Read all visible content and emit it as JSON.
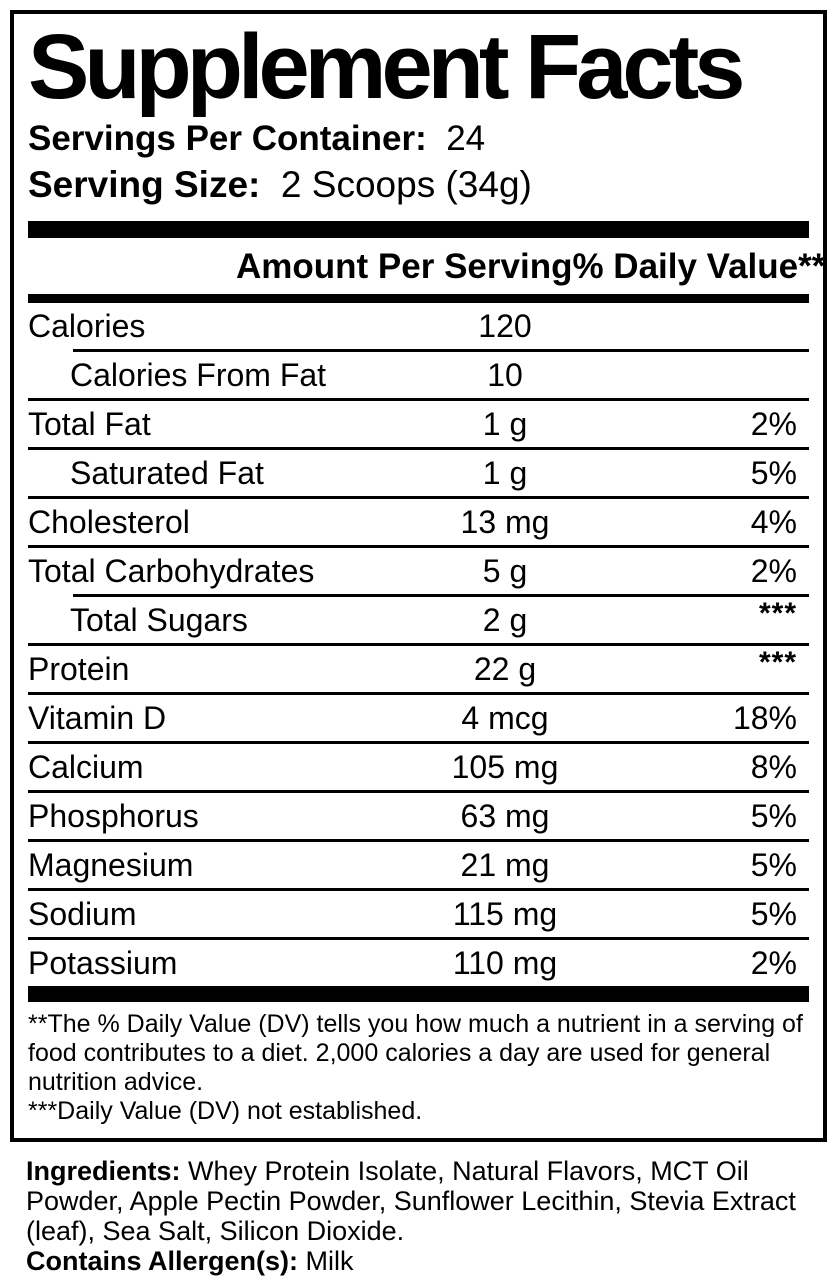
{
  "colors": {
    "ink": "#000000",
    "paper": "#ffffff"
  },
  "header": {
    "title": "Supplement Facts",
    "servings_label": "Servings Per Container:",
    "servings_value": "24",
    "serving_size_label": "Serving Size:",
    "serving_size_value": "2 Scoops (34g)"
  },
  "table": {
    "amount_header": "Amount Per Serving",
    "dv_header": "% Daily Value**",
    "rows": [
      {
        "name": "Calories",
        "amount": "120",
        "dv": "",
        "indent": false,
        "sep_above": "none"
      },
      {
        "name": "Calories From Fat",
        "amount": "10",
        "dv": "",
        "indent": true,
        "sep_above": "indent"
      },
      {
        "name": "Total Fat",
        "amount": "1 g",
        "dv": "2%",
        "indent": false,
        "sep_above": "full"
      },
      {
        "name": "Saturated Fat",
        "amount": "1 g",
        "dv": "5%",
        "indent": true,
        "sep_above": "full"
      },
      {
        "name": "Cholesterol",
        "amount": "13 mg",
        "dv": "4%",
        "indent": false,
        "sep_above": "full"
      },
      {
        "name": "Total Carbohydrates",
        "amount": "5 g",
        "dv": "2%",
        "indent": false,
        "sep_above": "full"
      },
      {
        "name": "Total Sugars",
        "amount": "2 g",
        "dv": "***",
        "indent": true,
        "sep_above": "indent"
      },
      {
        "name": "Protein",
        "amount": "22 g",
        "dv": "***",
        "indent": false,
        "sep_above": "full"
      },
      {
        "name": "Vitamin D",
        "amount": "4 mcg",
        "dv": "18%",
        "indent": false,
        "sep_above": "full"
      },
      {
        "name": "Calcium",
        "amount": "105 mg",
        "dv": "8%",
        "indent": false,
        "sep_above": "full"
      },
      {
        "name": "Phosphorus",
        "amount": "63 mg",
        "dv": "5%",
        "indent": false,
        "sep_above": "full"
      },
      {
        "name": "Magnesium",
        "amount": "21 mg",
        "dv": "5%",
        "indent": false,
        "sep_above": "full"
      },
      {
        "name": "Sodium",
        "amount": "115 mg",
        "dv": "5%",
        "indent": false,
        "sep_above": "full"
      },
      {
        "name": "Potassium",
        "amount": "110 mg",
        "dv": "2%",
        "indent": false,
        "sep_above": "full"
      }
    ]
  },
  "footnotes": {
    "dv_note": "**The % Daily Value (DV) tells you how much a nutrient in a serving of food contributes to a diet. 2,000 calories a day are used for general nutrition advice.",
    "not_established_note": "***Daily Value (DV) not established."
  },
  "ingredients": {
    "label": "Ingredients:",
    "text": " Whey Protein Isolate, Natural Flavors, MCT Oil Powder, Apple Pectin Powder, Sunflower Lecithin, Stevia Extract (leaf), Sea Salt, Silicon Dioxide."
  },
  "allergens": {
    "label": "Contains Allergen(s):",
    "value": " Milk"
  }
}
